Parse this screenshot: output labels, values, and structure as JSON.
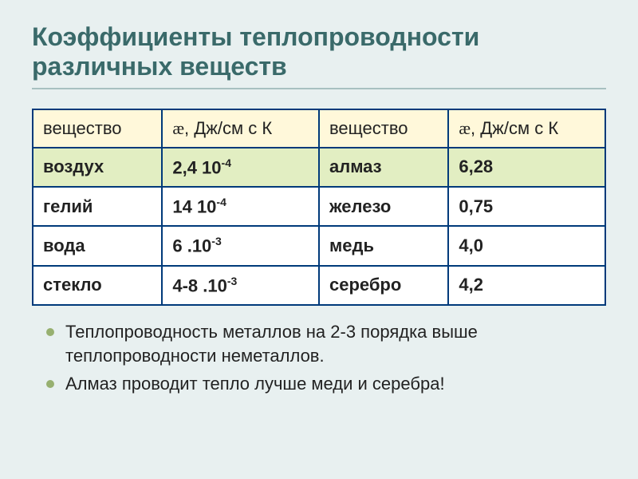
{
  "title": "Коэффициенты теплопроводности различных веществ",
  "table": {
    "headers": {
      "col1": "вещество",
      "col2_pre": "æ",
      "col2_post": ", Дж/см с К",
      "col3": "вещество",
      "col4_pre": "æ",
      "col4_post": ", Дж/см с К"
    },
    "rows": [
      {
        "highlight": true,
        "c1": "воздух",
        "c2_base": "2,4 10",
        "c2_exp": "-4",
        "c3": "алмаз",
        "c4": "6,28"
      },
      {
        "highlight": false,
        "c1": "гелий",
        "c2_base": "14 10",
        "c2_exp": "-4",
        "c3": "железо",
        "c4": "0,75"
      },
      {
        "highlight": false,
        "c1": "вода",
        "c2_base": "6 .10",
        "c2_exp": "-3",
        "c3": "медь",
        "c4": "4,0"
      },
      {
        "highlight": false,
        "c1": "стекло",
        "c2_base": "4-8 .10",
        "c2_exp": "-3",
        "c3": "серебро",
        "c4": "4,2"
      }
    ]
  },
  "bullets": [
    "Теплопроводность металлов на 2-3 порядка выше теплопроводности неметаллов.",
    "Алмаз проводит тепло лучше меди и серебра!"
  ],
  "colors": {
    "background": "#e8f0f0",
    "title": "#3a6a6a",
    "separator": "#a8c0c0",
    "table_border": "#003a7a",
    "header_bg": "#fff8da",
    "highlight_bg": "#e2eec2",
    "normal_bg": "#ffffff",
    "bullet_marker": "#97b070",
    "text": "#222222"
  },
  "typography": {
    "title_size": 32,
    "cell_size": 22,
    "bullet_size": 22,
    "sup_size": 14
  }
}
